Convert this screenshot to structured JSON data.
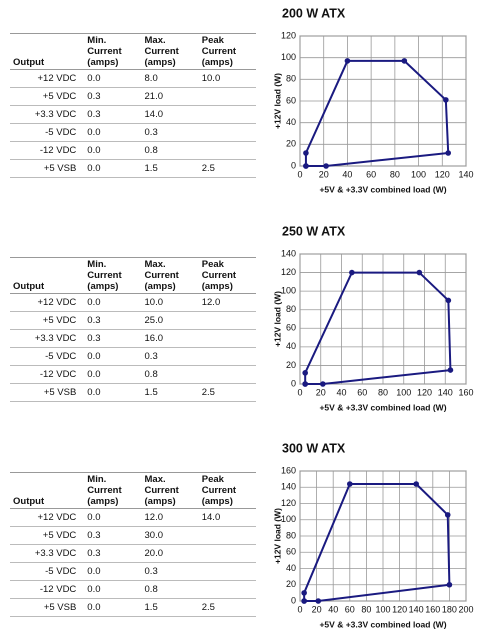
{
  "tables": [
    {
      "header": [
        "Output",
        "Min. Current (amps)",
        "Max. Current (amps)",
        "Peak Current (amps)"
      ],
      "rows": [
        [
          "+12 VDC",
          "0.0",
          "8.0",
          "10.0"
        ],
        [
          "+5 VDC",
          "0.3",
          "21.0",
          null
        ],
        [
          "+3.3 VDC",
          "0.3",
          "14.0",
          null
        ],
        [
          "-5 VDC",
          "0.0",
          "0.3",
          null
        ],
        [
          "-12 VDC",
          "0.0",
          "0.8",
          null
        ],
        [
          "+5 VSB",
          "0.0",
          "1.5",
          "2.5"
        ]
      ]
    },
    {
      "header": [
        "Output",
        "Min. Current (amps)",
        "Max. Current (amps)",
        "Peak Current (amps)"
      ],
      "rows": [
        [
          "+12 VDC",
          "0.0",
          "10.0",
          "12.0"
        ],
        [
          "+5 VDC",
          "0.3",
          "25.0",
          null
        ],
        [
          "+3.3 VDC",
          "0.3",
          "16.0",
          null
        ],
        [
          "-5 VDC",
          "0.0",
          "0.3",
          null
        ],
        [
          "-12 VDC",
          "0.0",
          "0.8",
          null
        ],
        [
          "+5 VSB",
          "0.0",
          "1.5",
          "2.5"
        ]
      ]
    },
    {
      "header": [
        "Output",
        "Min. Current (amps)",
        "Max. Current (amps)",
        "Peak Current (amps)"
      ],
      "rows": [
        [
          "+12 VDC",
          "0.0",
          "12.0",
          "14.0"
        ],
        [
          "+5 VDC",
          "0.3",
          "30.0",
          null
        ],
        [
          "+3.3 VDC",
          "0.3",
          "20.0",
          null
        ],
        [
          "-5 VDC",
          "0.0",
          "0.3",
          null
        ],
        [
          "-12 VDC",
          "0.0",
          "0.8",
          null
        ],
        [
          "+5 VSB",
          "0.0",
          "1.5",
          "2.5"
        ]
      ]
    }
  ],
  "chart_data": [
    {
      "type": "line",
      "title": "200 W ATX",
      "x_label": "+5V & +3.3V combined load (W)",
      "y_label": "+12V load (W)",
      "color": "#1a1a80",
      "grid": true,
      "x": [
        5,
        5,
        40,
        88,
        123,
        125,
        22,
        5
      ],
      "values": [
        0,
        12,
        97,
        97,
        61,
        12,
        0,
        0
      ],
      "xlim": [
        0,
        140
      ],
      "xticks": [
        0,
        20,
        40,
        60,
        80,
        100,
        120,
        140
      ],
      "ylim": [
        0,
        120
      ],
      "yticks": [
        0,
        20,
        40,
        60,
        80,
        100,
        120
      ]
    },
    {
      "type": "line",
      "title": "250 W ATX",
      "x_label": "+5V & +3.3V combined load (W)",
      "y_label": "+12V load (W)",
      "color": "#1a1a80",
      "grid": true,
      "x": [
        5,
        5,
        50,
        115,
        143,
        145,
        22,
        5
      ],
      "values": [
        0,
        12,
        120,
        120,
        90,
        15,
        0,
        0
      ],
      "xlim": [
        0,
        160
      ],
      "xticks": [
        0,
        20,
        40,
        60,
        80,
        100,
        120,
        140,
        160
      ],
      "ylim": [
        0,
        140
      ],
      "yticks": [
        0,
        20,
        40,
        60,
        80,
        100,
        120,
        140
      ]
    },
    {
      "type": "line",
      "title": "300 W ATX",
      "x_label": "+5V & +3.3V combined load (W)",
      "y_label": "+12V load (W)",
      "color": "#1a1a80",
      "grid": true,
      "x": [
        5,
        5,
        60,
        140,
        178,
        180,
        22,
        5
      ],
      "values": [
        0,
        10,
        144,
        144,
        106,
        20,
        0,
        0
      ],
      "xlim": [
        0,
        200
      ],
      "xticks": [
        0,
        20,
        40,
        60,
        80,
        100,
        120,
        140,
        160,
        180,
        200
      ],
      "ylim": [
        0,
        160
      ],
      "yticks": [
        0,
        20,
        40,
        60,
        80,
        100,
        120,
        140,
        160
      ]
    }
  ]
}
